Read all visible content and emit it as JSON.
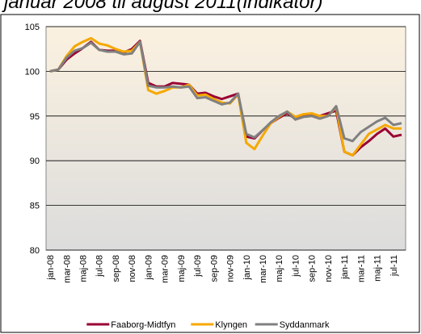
{
  "chart_data": {
    "type": "line",
    "title": "januar 2008 til august 2011(indikator)",
    "categories": [
      "jan-08",
      null,
      "mar-08",
      null,
      "maj-08",
      null,
      "jul-08",
      null,
      "sep-08",
      null,
      "nov-08",
      null,
      "jan-09",
      null,
      "mar-09",
      null,
      "maj-09",
      null,
      "jul-09",
      null,
      "sep-09",
      null,
      "nov-09",
      null,
      "jan-10",
      null,
      "mar-10",
      null,
      "maj-10",
      null,
      "jul-10",
      null,
      "sep-10",
      null,
      "nov-10",
      null,
      "jan-11",
      null,
      "mar-11",
      null,
      "maj-11",
      null,
      "jul-11",
      null
    ],
    "series": [
      {
        "name": "Faaborg-Midtfyn",
        "color": "#990033",
        "values": [
          100,
          100.2,
          101.3,
          102,
          102.6,
          103.3,
          102.4,
          102.3,
          102.3,
          102.1,
          102.5,
          103.4,
          98.7,
          98.3,
          98.3,
          98.7,
          98.6,
          98.5,
          97.5,
          97.6,
          97.2,
          96.9,
          97.2,
          97.5,
          92.7,
          92.5,
          93.4,
          94.2,
          94.8,
          95.3,
          94.7,
          95.1,
          95.2,
          95.0,
          95.3,
          95.6,
          91.0,
          90.6,
          91.5,
          92.2,
          93.0,
          93.6,
          92.7,
          92.9
        ]
      },
      {
        "name": "Klyngen",
        "color": "#f5a800",
        "values": [
          100,
          100.2,
          101.7,
          102.8,
          103.3,
          103.7,
          103.1,
          102.9,
          102.5,
          102.2,
          102.3,
          103.3,
          97.9,
          97.5,
          97.8,
          98.2,
          98.2,
          98.5,
          97.3,
          97.4,
          96.9,
          96.5,
          96.4,
          97.4,
          92.0,
          91.3,
          92.8,
          94.2,
          94.9,
          95.5,
          94.9,
          95.2,
          95.3,
          95.0,
          95.0,
          96.0,
          91.0,
          90.6,
          91.8,
          93.0,
          93.5,
          94.0,
          93.6,
          93.6
        ]
      },
      {
        "name": "Syddanmark",
        "color": "#808080",
        "values": [
          100,
          100.2,
          101.5,
          102.3,
          102.6,
          103.2,
          102.4,
          102.2,
          102.2,
          101.9,
          102.0,
          103.3,
          98.4,
          98.2,
          98.2,
          98.3,
          98.2,
          98.3,
          97.0,
          97.1,
          96.7,
          96.3,
          96.5,
          97.5,
          93.0,
          92.6,
          93.4,
          94.3,
          95.0,
          95.5,
          94.6,
          94.9,
          95.0,
          94.7,
          95.0,
          96.1,
          92.5,
          92.2,
          93.2,
          93.8,
          94.4,
          94.8,
          94.0,
          94.2
        ]
      }
    ],
    "ylim": [
      80,
      105
    ],
    "yticks": [
      80,
      85,
      90,
      95,
      100,
      105
    ],
    "grid": true
  }
}
